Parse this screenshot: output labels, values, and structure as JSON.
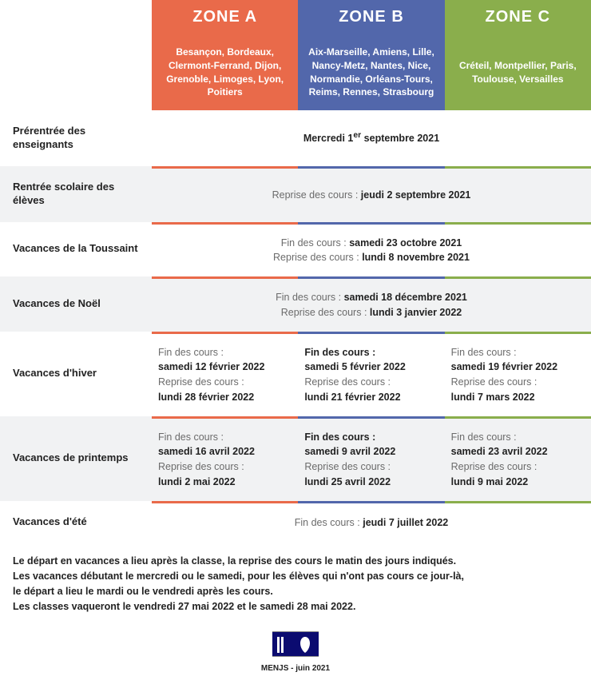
{
  "zones": {
    "a": {
      "title": "ZONE A",
      "cities": "Besançon, Bordeaux, Clermont-Ferrand, Dijon, Grenoble, Limoges, Lyon, Poitiers",
      "color": "#e96a4a"
    },
    "b": {
      "title": "ZONE B",
      "cities": "Aix-Marseille, Amiens, Lille, Nancy-Metz, Nantes, Nice, Normandie, Orléans-Tours, Reims, Rennes, Strasbourg",
      "color": "#5267ab"
    },
    "c": {
      "title": "ZONE C",
      "cities": "Créteil, Montpellier, Paris, Toulouse, Versailles",
      "color": "#8aae4c"
    }
  },
  "labels": {
    "prerentree": "Prérentrée des enseignants",
    "rentree": "Rentrée scolaire des élèves",
    "toussaint": "Vacances de la Toussaint",
    "noel": "Vacances de Noël",
    "hiver": "Vacances d'hiver",
    "printemps": "Vacances de printemps",
    "ete": "Vacances d'été"
  },
  "common": {
    "fin": "Fin des cours :",
    "reprise": "Reprise des cours :"
  },
  "merged": {
    "prerentree_html": "Mercredi 1<sup>er</sup> septembre 2021",
    "rentree_prefix": "Reprise des cours : ",
    "rentree_date": "jeudi 2 septembre 2021",
    "toussaint_fin": "samedi 23 octobre 2021",
    "toussaint_reprise": "lundi 8 novembre 2021",
    "noel_fin": "samedi 18 décembre 2021",
    "noel_reprise": "lundi 3 janvier 2022",
    "ete_date": "jeudi 7 juillet 2022"
  },
  "hiver": {
    "a": {
      "fin": "samedi 12 février 2022",
      "reprise": "lundi 28 février 2022"
    },
    "b": {
      "fin": "samedi 5 février 2022",
      "reprise": "lundi 21 février 2022"
    },
    "c": {
      "fin": "samedi 19 février 2022",
      "reprise": "lundi 7 mars 2022"
    }
  },
  "printemps": {
    "a": {
      "fin": "samedi 16 avril 2022",
      "reprise": "lundi 2 mai 2022"
    },
    "b": {
      "fin": "samedi 9 avril 2022",
      "reprise": "lundi 25 avril 2022"
    },
    "c": {
      "fin": "samedi 23 avril 2022",
      "reprise": "lundi 9 mai 2022"
    }
  },
  "notes": {
    "l1": "Le départ en vacances a lieu après la classe, la reprise des cours le matin des jours indiqués.",
    "l2": "Les vacances débutant le mercredi ou le samedi, pour les élèves qui n'ont pas cours ce jour-là,",
    "l3": "le départ a lieu le mardi ou le vendredi après les cours.",
    "l4": "Les classes vaqueront le vendredi 27 mai 2022 et le samedi 28 mai 2022."
  },
  "footer": "MENJS - juin 2021"
}
